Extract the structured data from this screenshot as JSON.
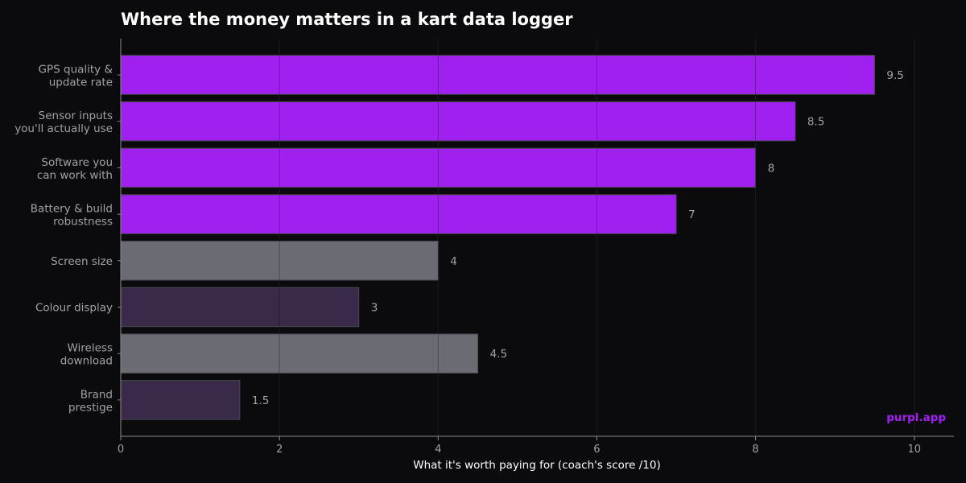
{
  "chart_data": {
    "type": "bar",
    "orientation": "horizontal",
    "title": "Where the money matters in a kart data logger",
    "xlabel": "What it's worth paying for (coach's score /10)",
    "ylabel": "",
    "xlim": [
      0,
      10.5
    ],
    "xticks": [
      0,
      2,
      4,
      6,
      8,
      10
    ],
    "grid": true,
    "categories": [
      [
        "GPS quality &",
        "update rate"
      ],
      [
        "Sensor inputs",
        "you'll actually use"
      ],
      [
        "Software you",
        "can work with"
      ],
      [
        "Battery & build",
        "robustness"
      ],
      [
        "Screen size"
      ],
      [
        "Colour display"
      ],
      [
        "Wireless",
        "download"
      ],
      [
        "Brand",
        "prestige"
      ]
    ],
    "values": [
      9.5,
      8.5,
      8,
      7,
      4,
      3,
      4.5,
      1.5
    ],
    "value_labels": [
      "9.5",
      "8.5",
      "8",
      "7",
      "4",
      "3",
      "4.5",
      "1.5"
    ],
    "bar_colors": [
      "#a020f0",
      "#a020f0",
      "#a020f0",
      "#a020f0",
      "#6b6b73",
      "#3a2a4a",
      "#6b6b73",
      "#3a2a4a"
    ],
    "colors": {
      "background": "#0b0b0d",
      "grid": "#2a2a30",
      "axis": "#8a8a92",
      "brand": "#a020f0"
    }
  },
  "watermark": "purpl.app"
}
